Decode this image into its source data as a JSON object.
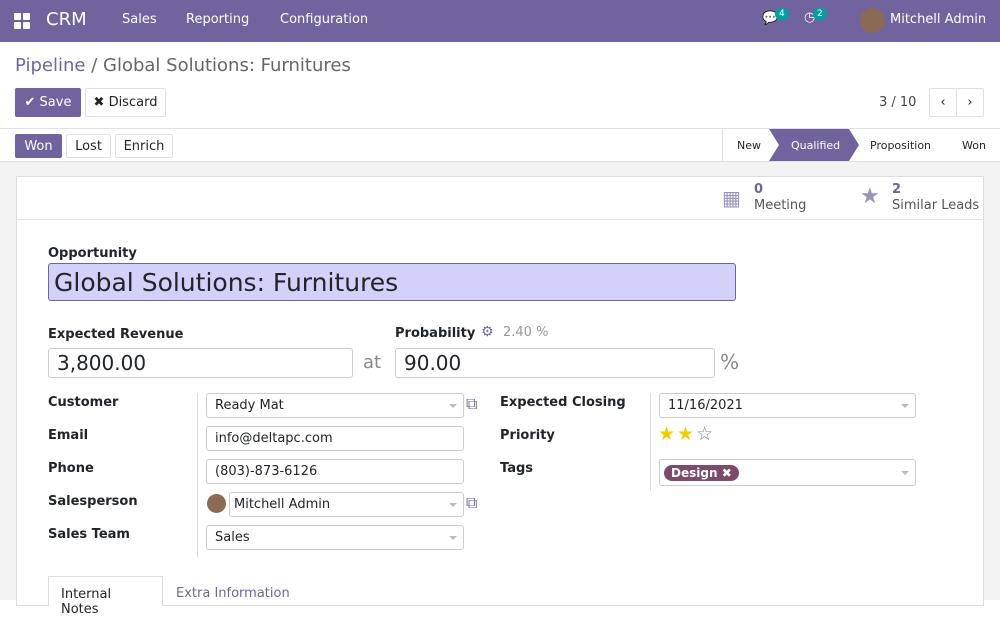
{
  "nav": {
    "app": "CRM",
    "menus": [
      "Sales",
      "Reporting",
      "Configuration"
    ],
    "messages_count": "4",
    "activities_count": "2",
    "user": "Mitchell Admin"
  },
  "breadcrumb": {
    "parent": "Pipeline",
    "separator": "/",
    "current": "Global Solutions: Furnitures"
  },
  "toolbar": {
    "save": "Save",
    "discard": "Discard",
    "pager": "3 / 10"
  },
  "actions": {
    "won": "Won",
    "lost": "Lost",
    "enrich": "Enrich"
  },
  "stages": {
    "items": [
      "New",
      "Qualified",
      "Proposition",
      "Won"
    ],
    "active": "Qualified"
  },
  "smart_buttons": {
    "meeting_count": "0",
    "meeting_label": "Meeting",
    "similar_count": "2",
    "similar_label": "Similar Leads"
  },
  "form": {
    "opportunity_label": "Opportunity",
    "opportunity": "Global Solutions: Furnitures",
    "revenue_label": "Expected Revenue",
    "revenue": "3,800.00",
    "at": "at",
    "probability_label": "Probability",
    "auto_probability": "2.40",
    "pct": "%",
    "probability": "90.00",
    "customer_label": "Customer",
    "customer": "Ready Mat",
    "email_label": "Email",
    "email": "info@deltapc.com",
    "phone_label": "Phone",
    "phone": "(803)-873-6126",
    "salesperson_label": "Salesperson",
    "salesperson": "Mitchell Admin",
    "team_label": "Sales Team",
    "team": "Sales",
    "closing_label": "Expected Closing",
    "closing": "11/16/2021",
    "priority_label": "Priority",
    "priority": 2,
    "priority_max": 3,
    "tags_label": "Tags",
    "tags": [
      "Design"
    ],
    "tag_color": "#7c4a6b"
  },
  "tabs": [
    "Internal Notes",
    "Extra Information"
  ],
  "colors": {
    "brand": "#71639e",
    "star": "#f3cc00"
  }
}
